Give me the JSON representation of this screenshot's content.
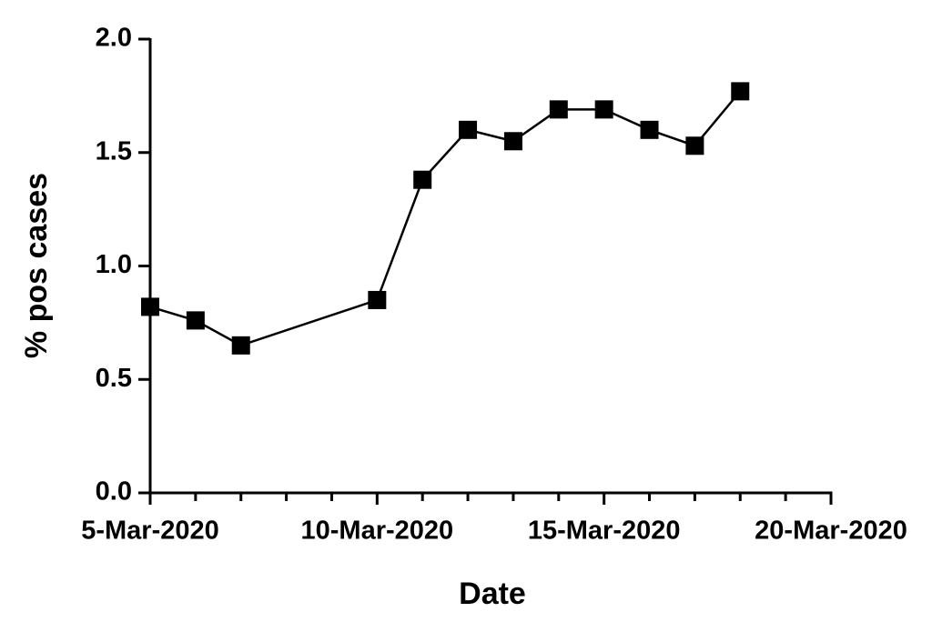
{
  "chart_data": {
    "type": "line",
    "xlabel": "Date",
    "ylabel": "% pos cases",
    "x": [
      "2020-03-05",
      "2020-03-06",
      "2020-03-07",
      "2020-03-10",
      "2020-03-11",
      "2020-03-12",
      "2020-03-13",
      "2020-03-14",
      "2020-03-15",
      "2020-03-16",
      "2020-03-17",
      "2020-03-18"
    ],
    "series": [
      {
        "color": "#000000",
        "marker": "square",
        "values": [
          0.82,
          0.76,
          0.65,
          0.85,
          1.38,
          1.6,
          1.55,
          1.69,
          1.69,
          1.6,
          1.53,
          1.77
        ]
      }
    ],
    "xlim": [
      "2020-03-05",
      "2020-03-20"
    ],
    "xticks": [
      {
        "value": "2020-03-05",
        "label": "5-Mar-2020"
      },
      {
        "value": "2020-03-10",
        "label": "10-Mar-2020"
      },
      {
        "value": "2020-03-15",
        "label": "15-Mar-2020"
      },
      {
        "value": "2020-03-20",
        "label": "20-Mar-2020"
      }
    ],
    "xminor_ticks": [
      "2020-03-06",
      "2020-03-07",
      "2020-03-08",
      "2020-03-09",
      "2020-03-11",
      "2020-03-12",
      "2020-03-13",
      "2020-03-14",
      "2020-03-16",
      "2020-03-17",
      "2020-03-18",
      "2020-03-19"
    ],
    "ylim": [
      0,
      2
    ],
    "yticks": [
      {
        "value": 0,
        "label": "0.0"
      },
      {
        "value": 0.5,
        "label": "0.5"
      },
      {
        "value": 1,
        "label": "1.0"
      },
      {
        "value": 1.5,
        "label": "1.5"
      },
      {
        "value": 2,
        "label": "2.0"
      }
    ],
    "grid": false
  }
}
